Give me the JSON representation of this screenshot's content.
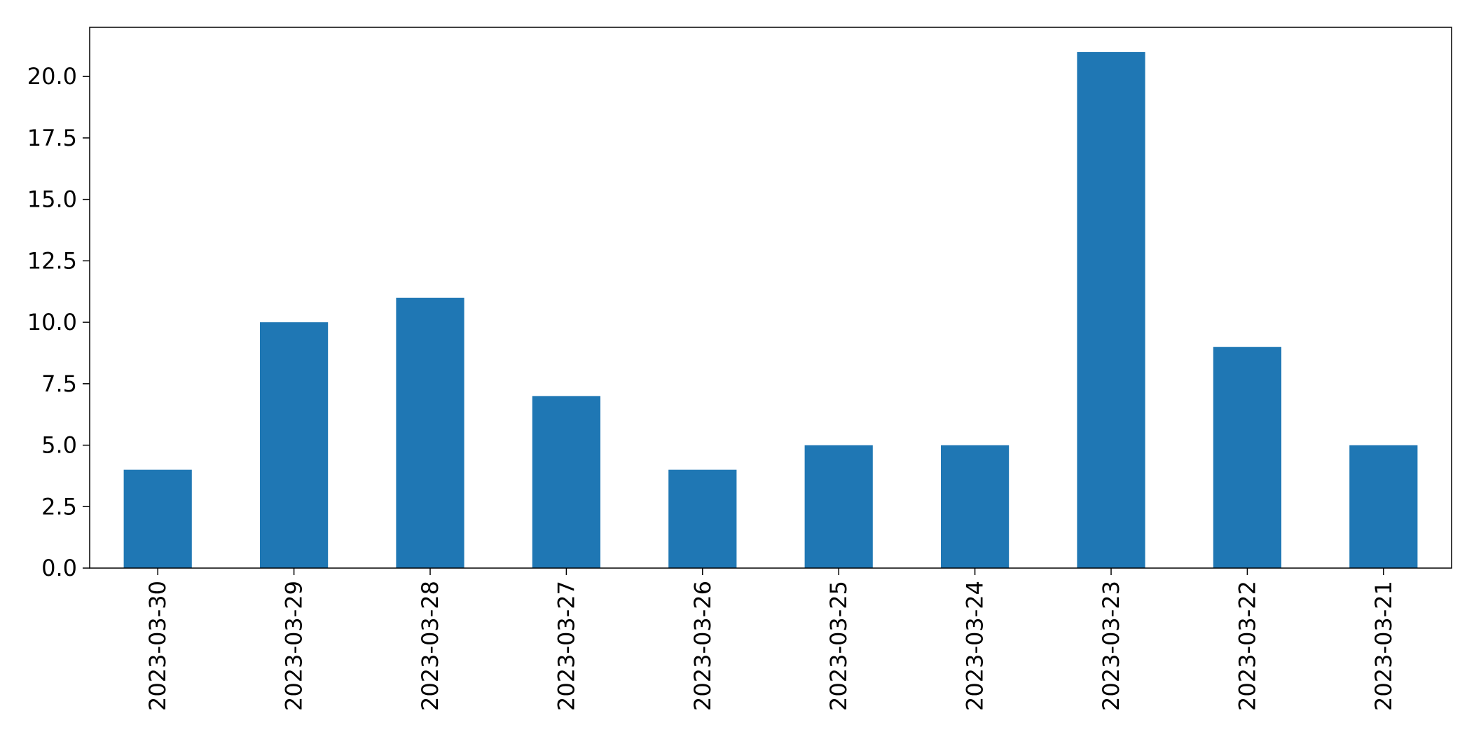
{
  "chart_data": {
    "type": "bar",
    "title": "",
    "xlabel": "",
    "ylabel": "",
    "categories": [
      "2023-03-30",
      "2023-03-29",
      "2023-03-28",
      "2023-03-27",
      "2023-03-26",
      "2023-03-25",
      "2023-03-24",
      "2023-03-23",
      "2023-03-22",
      "2023-03-21"
    ],
    "values": [
      4,
      10,
      11,
      7,
      4,
      5,
      5,
      21,
      9,
      5
    ],
    "ylim": [
      0,
      22
    ],
    "yticks": [
      "0.0",
      "2.5",
      "5.0",
      "7.5",
      "10.0",
      "12.5",
      "15.0",
      "17.5",
      "20.0"
    ],
    "ytick_values": [
      0,
      2.5,
      5,
      7.5,
      10,
      12.5,
      15,
      17.5,
      20
    ],
    "grid": false,
    "legend": "none",
    "bar_color": "#1f77b4",
    "x_tick_rotation": "vertical"
  }
}
